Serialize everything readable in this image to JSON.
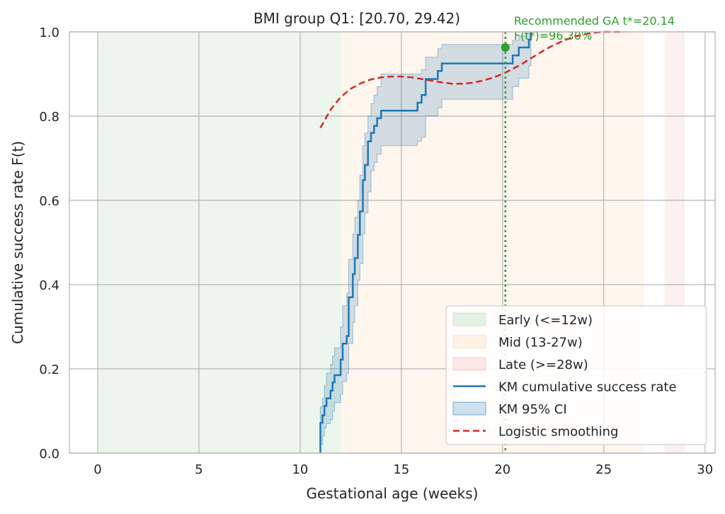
{
  "chart_data": {
    "type": "line",
    "title": "BMI group Q1: [20.70, 29.42)",
    "xlabel": "Gestational age (weeks)",
    "ylabel": "Cumulative success rate F(t)",
    "xlim": [
      -1.4,
      30.5
    ],
    "ylim": [
      0,
      1
    ],
    "xticks": [
      "0",
      "5",
      "10",
      "15",
      "20",
      "25",
      "30"
    ],
    "yticks": [
      "0.0",
      "0.2",
      "0.4",
      "0.6",
      "0.8",
      "1.0"
    ],
    "grid": true,
    "legend_position": "lower-right",
    "bands": [
      {
        "name": "Early (<=12w)",
        "from": 0,
        "to": 12,
        "color": "#2ca02c",
        "opacity": 0.09
      },
      {
        "name": "Mid (13-27w)",
        "from": 12,
        "to": 27,
        "color": "#ff7f0e",
        "opacity": 0.07
      },
      {
        "name": "Late (>=28w)",
        "from": 28,
        "to": 29,
        "color": "#d62728",
        "opacity": 0.07
      }
    ],
    "km": {
      "name": "KM cumulative success rate",
      "color": "#1f77b4",
      "x": [
        11.0,
        11.0,
        11.1,
        11.2,
        11.3,
        11.5,
        11.6,
        11.7,
        12.0,
        12.1,
        12.3,
        12.4,
        12.6,
        12.7,
        12.85,
        12.95,
        13.1,
        13.2,
        13.35,
        13.5,
        13.65,
        13.8,
        14.0,
        14.2,
        15.8,
        16.0,
        16.2,
        16.8,
        17.0,
        20.3,
        20.5,
        20.8,
        21.1,
        21.3,
        21.4
      ],
      "y": [
        0.0,
        0.072,
        0.09,
        0.112,
        0.13,
        0.148,
        0.168,
        0.185,
        0.222,
        0.26,
        0.278,
        0.37,
        0.425,
        0.463,
        0.518,
        0.574,
        0.648,
        0.684,
        0.74,
        0.76,
        0.777,
        0.795,
        0.813,
        0.813,
        0.832,
        0.85,
        0.888,
        0.907,
        0.925,
        0.925,
        0.944,
        0.963,
        0.963,
        0.982,
        1.0
      ]
    },
    "ci": {
      "name": "KM 95% CI",
      "color": "#1f77b4",
      "upper": [
        0.0,
        0.11,
        0.13,
        0.16,
        0.19,
        0.21,
        0.23,
        0.25,
        0.3,
        0.35,
        0.38,
        0.46,
        0.52,
        0.56,
        0.6,
        0.66,
        0.73,
        0.76,
        0.8,
        0.83,
        0.85,
        0.87,
        0.9,
        0.9,
        0.9,
        0.91,
        0.94,
        0.96,
        0.97,
        0.97,
        0.98,
        0.99,
        1.0,
        1.0,
        1.0
      ],
      "lower": [
        0.0,
        0.02,
        0.04,
        0.06,
        0.07,
        0.08,
        0.1,
        0.12,
        0.14,
        0.17,
        0.19,
        0.26,
        0.31,
        0.35,
        0.41,
        0.45,
        0.52,
        0.57,
        0.62,
        0.67,
        0.69,
        0.71,
        0.73,
        0.73,
        0.74,
        0.75,
        0.8,
        0.82,
        0.84,
        0.84,
        0.87,
        0.89,
        0.89,
        0.92,
        0.96
      ]
    },
    "logistic": {
      "name": "Logistic smoothing",
      "color": "#d62728",
      "x": [
        11.0,
        11.5,
        12.0,
        12.5,
        13.0,
        13.5,
        14.0,
        14.5,
        15.0,
        15.5,
        16.0,
        16.5,
        17.0,
        17.5,
        18.0,
        18.5,
        19.0,
        19.5,
        20.0,
        20.5,
        21.0,
        21.5,
        22.0,
        22.5,
        23.0,
        23.5,
        24.0,
        24.5,
        25.0,
        25.5,
        26.0
      ],
      "y": [
        0.772,
        0.815,
        0.845,
        0.865,
        0.878,
        0.887,
        0.892,
        0.894,
        0.894,
        0.892,
        0.888,
        0.884,
        0.88,
        0.877,
        0.877,
        0.879,
        0.884,
        0.891,
        0.9,
        0.912,
        0.925,
        0.94,
        0.955,
        0.968,
        0.979,
        0.988,
        0.994,
        0.998,
        1.0,
        1.0,
        1.0
      ]
    },
    "recommendation": {
      "t": 20.14,
      "f": 0.963,
      "color": "#2ca02c",
      "label_line1": "Recommended GA t*=20.14",
      "label_line2": "F(t*)=96.30%"
    }
  }
}
